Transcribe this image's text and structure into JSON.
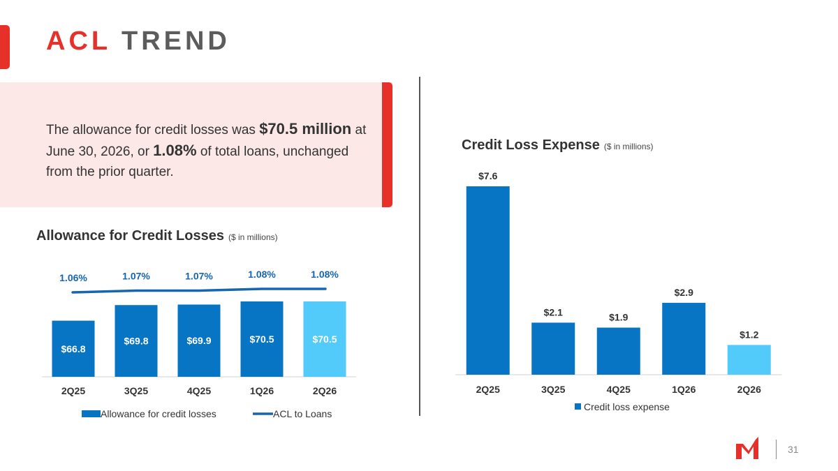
{
  "slide": {
    "title_accent": "ACL",
    "title_rest": "TREND",
    "page_number": "31"
  },
  "callout": {
    "part1": "The allowance for credit losses was ",
    "bold1": "$70.5 million",
    "part2": " at June 30, 2026, or ",
    "bold2": "1.08%",
    "part3": " of total loans, unchanged from the prior quarter."
  },
  "colors": {
    "accent_red": "#e8302a",
    "bar_blue": "#0775c4",
    "bar_light": "#52cbfa",
    "line_blue": "#1565b0",
    "callout_bg": "#fde8e8"
  },
  "chart_data": [
    {
      "type": "bar",
      "title": "Allowance for Credit Losses",
      "subtitle": "($ in millions)",
      "categories": [
        "2Q25",
        "3Q25",
        "4Q25",
        "1Q26",
        "2Q26"
      ],
      "series": [
        {
          "name": "Allowance for credit losses",
          "type": "bar",
          "values": [
            66.8,
            69.8,
            69.9,
            70.5,
            70.5
          ],
          "labels": [
            "$66.8",
            "$69.8",
            "$69.9",
            "$70.5",
            "$70.5"
          ],
          "highlight_last": true
        },
        {
          "name": "ACL to Loans",
          "type": "line",
          "values": [
            1.06,
            1.07,
            1.07,
            1.08,
            1.08
          ],
          "labels": [
            "1.06%",
            "1.07%",
            "1.07%",
            "1.08%",
            "1.08%"
          ]
        }
      ],
      "legend": "bottom",
      "grid": false
    },
    {
      "type": "bar",
      "title": "Credit Loss Expense",
      "subtitle": "($ in millions)",
      "categories": [
        "2Q25",
        "3Q25",
        "4Q25",
        "1Q26",
        "2Q26"
      ],
      "series": [
        {
          "name": "Credit loss expense",
          "values": [
            7.6,
            2.1,
            1.9,
            2.9,
            1.2
          ],
          "labels": [
            "$7.6",
            "$2.1",
            "$1.9",
            "$2.9",
            "$1.2"
          ],
          "highlight_last": true
        }
      ],
      "legend": "bottom",
      "grid": false
    }
  ]
}
